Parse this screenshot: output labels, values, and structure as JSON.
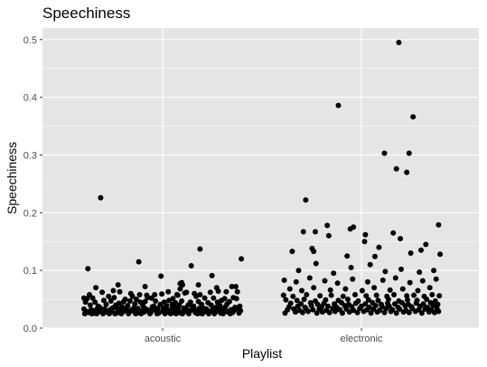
{
  "chart_data": {
    "type": "scatter",
    "title": "Speechiness",
    "xlabel": "Playlist",
    "ylabel": "Speechiness",
    "categories": [
      "acoustic",
      "electronic"
    ],
    "ylim": [
      0,
      0.52
    ],
    "y_ticks": [
      0.0,
      0.1,
      0.2,
      0.3,
      0.4,
      0.5
    ],
    "y_tick_labels": [
      "0.0",
      "0.1",
      "0.2",
      "0.3",
      "0.4",
      "0.5"
    ],
    "grid": true,
    "background": "#e5e5e5",
    "gridline_color": "#ffffff",
    "point_color": "#000000",
    "series": [
      {
        "category": "acoustic",
        "jitter_x": [
          -0.99,
          -0.95,
          -0.88,
          -0.68,
          -0.61,
          -0.47,
          -0.38,
          -0.33,
          -0.19,
          -0.14,
          0.13,
          0.19,
          0.28,
          0.42,
          0.53,
          0.64,
          0.78,
          0.89,
          0.93,
          -0.97,
          -0.85,
          -0.74,
          -0.65,
          -0.55,
          -0.49,
          -0.41,
          -0.28,
          -0.22,
          -0.09,
          0.02,
          0.08,
          0.16,
          0.24,
          0.35,
          0.45,
          0.57,
          0.69,
          0.74,
          0.84,
          -0.91,
          -0.81,
          -0.71,
          -0.59,
          -0.44,
          -0.35,
          -0.25,
          -0.11,
          -0.03,
          0.05,
          0.12,
          0.21,
          0.32,
          0.39,
          0.49,
          0.61,
          0.72,
          0.81,
          0.97,
          -0.79,
          -0.63,
          -0.51,
          -0.36,
          -0.24,
          -0.13,
          0.01,
          0.15,
          0.27,
          0.38,
          0.51,
          0.67,
          0.79,
          0.91,
          -0.99,
          -0.9,
          -0.82,
          -0.73,
          -0.66,
          -0.57,
          -0.46,
          -0.39,
          -0.31,
          -0.21,
          -0.12,
          -0.06,
          0.04,
          0.11,
          0.2,
          0.29,
          0.37,
          0.46,
          0.55,
          0.63,
          0.71,
          0.77,
          0.86,
          0.95,
          -0.96,
          -0.87,
          -0.8,
          -0.72,
          -0.64,
          -0.53,
          -0.45,
          -0.37,
          -0.26,
          -0.18,
          -0.08,
          0.0,
          0.09,
          0.18,
          0.26,
          0.34,
          0.43,
          0.52,
          0.59,
          0.68,
          0.75,
          0.83,
          0.9,
          0.98,
          -0.93,
          -0.86,
          -0.77,
          -0.69,
          -0.58,
          -0.5,
          -0.42,
          -0.32,
          -0.23,
          -0.15,
          -0.05,
          0.06,
          0.14,
          0.23,
          0.31,
          0.41,
          0.48,
          0.56,
          0.66,
          0.73,
          0.82,
          0.88,
          0.96,
          -0.98,
          -0.89,
          -0.83,
          -0.75,
          -0.67,
          -0.6,
          -0.52,
          -0.43,
          -0.34,
          -0.27,
          -0.16,
          -0.07,
          0.03,
          0.1,
          0.17,
          0.25,
          0.33,
          0.44,
          0.5,
          0.58,
          0.65,
          0.76,
          0.85,
          0.94,
          -0.92,
          -0.84,
          -0.76,
          -0.62,
          -0.54,
          -0.4,
          -0.29,
          -0.2,
          -0.1,
          -0.01,
          0.07,
          0.22,
          0.3,
          0.4,
          0.47,
          0.6,
          0.7,
          0.8,
          0.87,
          0.99,
          -0.94,
          -0.78,
          -0.56,
          -0.3,
          -0.02,
          0.36,
          0.62,
          0.92
        ],
        "values": [
          0.052,
          0.051,
          0.052,
          0.055,
          0.053,
          0.05,
          0.055,
          0.05,
          0.053,
          0.052,
          0.051,
          0.057,
          0.061,
          0.055,
          0.052,
          0.052,
          0.051,
          0.053,
          0.051,
          0.045,
          0.045,
          0.048,
          0.047,
          0.043,
          0.046,
          0.047,
          0.045,
          0.046,
          0.047,
          0.045,
          0.048,
          0.044,
          0.047,
          0.045,
          0.046,
          0.044,
          0.045,
          0.048,
          0.046,
          0.04,
          0.038,
          0.041,
          0.04,
          0.039,
          0.042,
          0.04,
          0.038,
          0.041,
          0.039,
          0.041,
          0.04,
          0.04,
          0.038,
          0.041,
          0.04,
          0.039,
          0.042,
          0.038,
          0.036,
          0.035,
          0.037,
          0.035,
          0.036,
          0.037,
          0.035,
          0.036,
          0.035,
          0.037,
          0.035,
          0.036,
          0.037,
          0.036,
          0.033,
          0.032,
          0.034,
          0.033,
          0.032,
          0.034,
          0.033,
          0.032,
          0.034,
          0.033,
          0.032,
          0.034,
          0.032,
          0.033,
          0.034,
          0.033,
          0.032,
          0.034,
          0.033,
          0.032,
          0.034,
          0.033,
          0.032,
          0.034,
          0.029,
          0.03,
          0.031,
          0.029,
          0.03,
          0.029,
          0.031,
          0.03,
          0.029,
          0.031,
          0.03,
          0.029,
          0.031,
          0.03,
          0.029,
          0.03,
          0.031,
          0.03,
          0.029,
          0.031,
          0.03,
          0.029,
          0.031,
          0.03,
          0.027,
          0.026,
          0.028,
          0.027,
          0.026,
          0.028,
          0.027,
          0.026,
          0.028,
          0.027,
          0.026,
          0.028,
          0.027,
          0.026,
          0.028,
          0.027,
          0.026,
          0.028,
          0.027,
          0.026,
          0.028,
          0.027,
          0.026,
          0.025,
          0.025,
          0.025,
          0.025,
          0.025,
          0.025,
          0.025,
          0.025,
          0.025,
          0.025,
          0.025,
          0.025,
          0.025,
          0.025,
          0.025,
          0.025,
          0.025,
          0.025,
          0.025,
          0.025,
          0.025,
          0.025,
          0.025,
          0.063,
          0.058,
          0.07,
          0.062,
          0.065,
          0.063,
          0.06,
          0.058,
          0.057,
          0.058,
          0.059,
          0.063,
          0.068,
          0.062,
          0.06,
          0.058,
          0.062,
          0.064,
          0.063,
          0.072,
          0.12,
          0.103,
          0.226,
          0.075,
          0.115,
          0.09,
          0.108,
          0.091
        ],
        "extra_x": [
          -0.22,
          0.24,
          0.25,
          0.18,
          0.22,
          0.45,
          0.47,
          0.68,
          0.72
        ],
        "extra_values": [
          0.072,
          0.072,
          0.079,
          0.075,
          0.058,
          0.077,
          0.075,
          0.137,
          0.07
        ]
      },
      {
        "category": "electronic",
        "jitter_x": [
          -0.96,
          -0.83,
          -0.74,
          -0.67,
          -0.56,
          -0.49,
          -0.4,
          -0.33,
          -0.24,
          -0.15,
          -0.05,
          0.03,
          0.12,
          0.2,
          0.29,
          0.37,
          0.44,
          0.53,
          0.6,
          0.68,
          0.76,
          0.85,
          0.92,
          0.97,
          -0.93,
          -0.85,
          -0.78,
          -0.7,
          -0.61,
          -0.53,
          -0.44,
          -0.36,
          -0.27,
          -0.19,
          -0.1,
          -0.02,
          0.07,
          0.15,
          0.23,
          0.31,
          0.39,
          0.48,
          0.56,
          0.64,
          0.72,
          0.8,
          0.88,
          0.95,
          -0.91,
          -0.8,
          -0.71,
          -0.63,
          -0.5,
          -0.42,
          -0.31,
          -0.21,
          -0.12,
          0.0,
          0.1,
          0.18,
          0.26,
          0.35,
          0.46,
          0.55,
          0.63,
          0.74,
          0.83,
          0.9,
          -0.89,
          -0.76,
          -0.64,
          -0.55,
          -0.47,
          -0.34,
          -0.25,
          -0.16,
          -0.07,
          0.05,
          0.14,
          0.25,
          0.33,
          0.42,
          0.51,
          0.59,
          0.69,
          0.78,
          0.87,
          0.96,
          -0.95,
          -0.81,
          -0.72,
          -0.58,
          -0.45,
          -0.29,
          -0.17,
          -0.04,
          0.09,
          0.21,
          0.34,
          0.47,
          0.58,
          0.7,
          0.82,
          0.93,
          -0.98,
          -0.86,
          -0.69,
          -0.52,
          -0.38,
          -0.23,
          -0.08,
          0.06,
          0.19,
          0.32,
          0.41,
          0.57,
          0.66,
          0.79,
          0.89,
          0.98,
          -0.9,
          -0.75,
          -0.6,
          -0.39,
          -0.2,
          0.01,
          0.16,
          0.36,
          0.52,
          0.71,
          0.86,
          -0.97,
          -0.82,
          -0.65,
          -0.46,
          -0.3,
          -0.11,
          0.08,
          0.27,
          0.43,
          0.61,
          0.77,
          0.94,
          -0.79,
          -0.57,
          -0.35,
          -0.13,
          0.11,
          0.3,
          0.5,
          0.73,
          0.91,
          -0.87,
          -0.62,
          -0.41,
          -0.18,
          0.04,
          0.22,
          0.4,
          0.62,
          0.81,
          0.99,
          -0.73,
          -0.43,
          -0.14,
          0.17,
          0.49,
          0.75,
          0.97
        ],
        "values": [
          0.026,
          0.028,
          0.027,
          0.029,
          0.026,
          0.028,
          0.027,
          0.029,
          0.026,
          0.028,
          0.027,
          0.029,
          0.026,
          0.028,
          0.027,
          0.029,
          0.026,
          0.028,
          0.027,
          0.029,
          0.026,
          0.028,
          0.027,
          0.029,
          0.032,
          0.033,
          0.031,
          0.034,
          0.032,
          0.033,
          0.031,
          0.034,
          0.032,
          0.033,
          0.031,
          0.034,
          0.032,
          0.033,
          0.031,
          0.034,
          0.032,
          0.033,
          0.031,
          0.034,
          0.032,
          0.033,
          0.031,
          0.034,
          0.037,
          0.038,
          0.036,
          0.039,
          0.037,
          0.038,
          0.036,
          0.039,
          0.037,
          0.038,
          0.036,
          0.039,
          0.037,
          0.038,
          0.036,
          0.039,
          0.037,
          0.038,
          0.036,
          0.039,
          0.043,
          0.042,
          0.044,
          0.041,
          0.043,
          0.042,
          0.044,
          0.041,
          0.043,
          0.042,
          0.044,
          0.041,
          0.043,
          0.042,
          0.044,
          0.041,
          0.043,
          0.042,
          0.044,
          0.041,
          0.049,
          0.048,
          0.05,
          0.047,
          0.049,
          0.048,
          0.05,
          0.047,
          0.049,
          0.048,
          0.05,
          0.047,
          0.049,
          0.048,
          0.05,
          0.047,
          0.057,
          0.055,
          0.058,
          0.056,
          0.057,
          0.055,
          0.058,
          0.056,
          0.057,
          0.055,
          0.058,
          0.056,
          0.057,
          0.055,
          0.058,
          0.056,
          0.068,
          0.065,
          0.07,
          0.066,
          0.068,
          0.065,
          0.07,
          0.066,
          0.068,
          0.065,
          0.07,
          0.083,
          0.08,
          0.087,
          0.082,
          0.078,
          0.085,
          0.08,
          0.083,
          0.087,
          0.079,
          0.082,
          0.085,
          0.1,
          0.112,
          0.095,
          0.105,
          0.11,
          0.098,
          0.102,
          0.097,
          0.1,
          0.133,
          0.138,
          0.16,
          0.125,
          0.15,
          0.14,
          0.165,
          0.13,
          0.145,
          0.128,
          0.167,
          0.178,
          0.172,
          0.124,
          0.155,
          0.135,
          0.179
        ],
        "extra_x": [
          -0.7,
          -0.6,
          -0.58,
          -0.29,
          -0.1,
          0.05,
          0.29,
          0.44,
          0.47,
          0.57,
          0.6,
          0.65
        ],
        "extra_values": [
          0.222,
          0.133,
          0.167,
          0.386,
          0.175,
          0.162,
          0.303,
          0.276,
          0.495,
          0.27,
          0.303,
          0.366
        ]
      }
    ]
  }
}
